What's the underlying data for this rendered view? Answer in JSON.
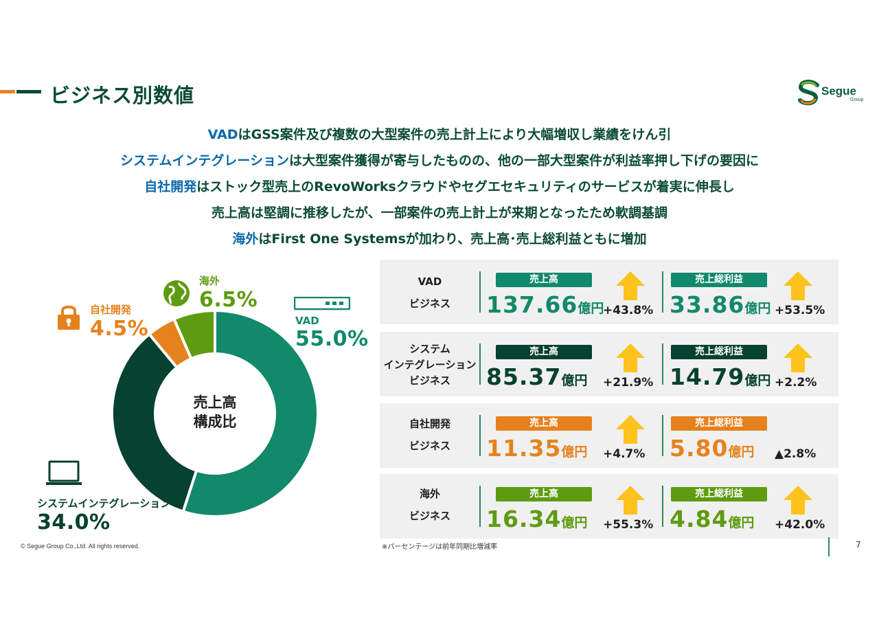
{
  "header": {
    "title": "ビジネス別数値",
    "logo_text": "Segue",
    "logo_sub": "Group"
  },
  "summary": [
    {
      "hl": "VAD",
      "rest": "はGSS案件及び複数の大型案件の売上計上により大幅増収し業績をけん引"
    },
    {
      "hl": "システムインテグレーション",
      "rest": "は大型案件獲得が寄与したものの、他の一部大型案件が利益率押し下げの要因に"
    },
    {
      "hl": "自社開発",
      "rest": "はストック型売上のRevoWorksクラウドやセグエセキュリティのサービスが着実に伸長し"
    },
    {
      "hl": "",
      "rest": "売上高は堅調に推移したが、一部案件の売上計上が来期となったため軟調基調"
    },
    {
      "hl": "海外",
      "rest": "はFirst One Systemsが加わり、売上高･売上総利益ともに増加"
    }
  ],
  "chart_data": {
    "type": "pie",
    "title": "売上高 構成比",
    "center_label": [
      "売上高",
      "構成比"
    ],
    "slices": [
      {
        "name": "VAD",
        "value": 55.0,
        "label": "55.0%",
        "color": "#11896a"
      },
      {
        "name": "システムインテグレーション",
        "value": 34.0,
        "label": "34.0%",
        "color": "#07412f"
      },
      {
        "name": "自社開発",
        "value": 4.5,
        "label": "4.5%",
        "color": "#e6821e"
      },
      {
        "name": "海外",
        "value": 6.5,
        "label": "6.5%",
        "color": "#5f9b10"
      }
    ]
  },
  "panels": [
    {
      "name_lines": [
        "VAD",
        "ビジネス"
      ],
      "color": "#11896a",
      "metrics": [
        {
          "label": "売上高",
          "value": "137.66",
          "unit": "億円",
          "change": "+43.8%",
          "num_color": "#11896a"
        },
        {
          "label": "売上総利益",
          "value": "33.86",
          "unit": "億円",
          "change": "+53.5%",
          "num_color": "#11896a"
        }
      ]
    },
    {
      "name_lines": [
        "システム",
        "インテグレーション",
        "ビジネス"
      ],
      "color": "#07412f",
      "metrics": [
        {
          "label": "売上高",
          "value": "85.37",
          "unit": "億円",
          "change": "+21.9%",
          "num_color": "#07412f"
        },
        {
          "label": "売上総利益",
          "value": "14.79",
          "unit": "億円",
          "change": "+2.2%",
          "num_color": "#07412f"
        }
      ]
    },
    {
      "name_lines": [
        "自社開発",
        "ビジネス"
      ],
      "color": "#e6821e",
      "metrics": [
        {
          "label": "売上高",
          "value": "11.35",
          "unit": "億円",
          "change": "+4.7%",
          "num_color": "#e6821e",
          "arrow": true
        },
        {
          "label": "売上総利益",
          "value": "5.80",
          "unit": "億円",
          "change": "▲2.8%",
          "num_color": "#e6821e",
          "arrow": false
        }
      ]
    },
    {
      "name_lines": [
        "海外",
        "ビジネス"
      ],
      "color": "#5f9b10",
      "metrics": [
        {
          "label": "売上高",
          "value": "16.34",
          "unit": "億円",
          "change": "+55.3%",
          "num_color": "#5f9b10"
        },
        {
          "label": "売上総利益",
          "value": "4.84",
          "unit": "億円",
          "change": "+42.0%",
          "num_color": "#5f9b10"
        }
      ]
    }
  ],
  "footer": {
    "note": "※パーセンテージは前年同期比増減率",
    "copyright": "© Segue Group Co.,Ltd. All rights reserved.",
    "page_number": "7"
  },
  "colors": {
    "dark_green": "#07412f",
    "teal": "#11896a",
    "orange": "#e6821e",
    "lime": "#5f9b10",
    "arrow_yellow": "#fdc21b",
    "highlight_blue": "#0a67a9"
  }
}
